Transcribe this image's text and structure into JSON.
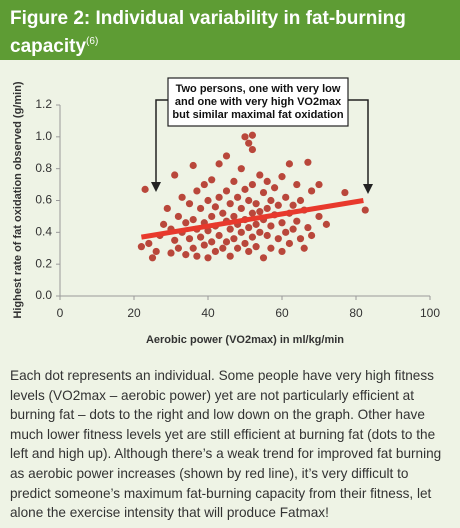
{
  "header": {
    "title": "Figure 2: Individual variability in fat-burning capacity",
    "reference": "(6)"
  },
  "chart_data": {
    "type": "scatter",
    "x_label": "Aerobic power (VO2max) in ml/kg/min",
    "y_label": "Highest rate of fat oxidation observed (g/min)",
    "annotation": [
      "Two persons, one with very low",
      "and one with very high VO2max",
      "but similar maximal fat oxidation"
    ],
    "xlim": [
      0,
      100
    ],
    "xticks": [
      0,
      20,
      40,
      60,
      80,
      100
    ],
    "ylim": [
      0,
      1.2
    ],
    "yticks": [
      {
        "value": 0,
        "label": "0.0"
      },
      0.2,
      0.4,
      0.6,
      0.8,
      {
        "value": 1,
        "label": "1.0"
      },
      1.2
    ],
    "color": "#b9473b",
    "x": [
      23,
      26,
      25,
      22,
      24,
      27,
      28,
      29,
      30,
      30,
      31,
      31,
      32,
      32,
      33,
      33,
      34,
      34,
      35,
      35,
      36,
      36,
      36,
      37,
      37,
      37,
      38,
      38,
      39,
      39,
      39,
      40,
      40,
      40,
      41,
      41,
      41,
      42,
      42,
      42,
      43,
      43,
      43,
      44,
      44,
      45,
      45,
      45,
      45,
      46,
      46,
      46,
      47,
      47,
      47,
      48,
      48,
      48,
      49,
      49,
      49,
      50,
      50,
      50,
      50,
      51,
      51,
      51,
      51,
      52,
      52,
      52,
      52,
      52,
      53,
      53,
      53,
      54,
      54,
      54,
      55,
      55,
      55,
      56,
      56,
      56,
      57,
      57,
      57,
      58,
      58,
      59,
      59,
      60,
      60,
      60,
      61,
      61,
      62,
      62,
      62,
      63,
      63,
      64,
      64,
      65,
      65,
      66,
      66,
      67,
      67,
      68,
      68,
      70,
      70,
      72,
      77,
      82.5
    ],
    "values": [
      0.67,
      0.28,
      0.24,
      0.31,
      0.33,
      0.38,
      0.45,
      0.55,
      0.42,
      0.27,
      0.76,
      0.35,
      0.5,
      0.3,
      0.62,
      0.4,
      0.46,
      0.26,
      0.58,
      0.36,
      0.82,
      0.48,
      0.3,
      0.66,
      0.42,
      0.25,
      0.55,
      0.37,
      0.7,
      0.46,
      0.32,
      0.6,
      0.41,
      0.24,
      0.73,
      0.5,
      0.34,
      0.56,
      0.44,
      0.28,
      0.83,
      0.62,
      0.38,
      0.52,
      0.3,
      0.88,
      0.66,
      0.47,
      0.34,
      0.58,
      0.42,
      0.25,
      0.72,
      0.5,
      0.36,
      0.62,
      0.45,
      0.3,
      0.8,
      0.55,
      0.4,
      1.0,
      0.67,
      0.48,
      0.33,
      0.96,
      0.6,
      0.43,
      0.28,
      1.01,
      0.92,
      0.7,
      0.52,
      0.37,
      0.58,
      0.45,
      0.31,
      0.76,
      0.53,
      0.4,
      0.65,
      0.48,
      0.24,
      0.72,
      0.55,
      0.38,
      0.6,
      0.44,
      0.3,
      0.68,
      0.51,
      0.57,
      0.36,
      0.75,
      0.46,
      0.28,
      0.62,
      0.4,
      0.83,
      0.52,
      0.33,
      0.57,
      0.42,
      0.7,
      0.47,
      0.6,
      0.36,
      0.54,
      0.3,
      0.84,
      0.43,
      0.66,
      0.38,
      0.7,
      0.5,
      0.45,
      0.65,
      0.54
    ],
    "trend_line": {
      "x": [
        22,
        82
      ],
      "values": [
        0.37,
        0.6
      ],
      "color": "#e8392c"
    }
  },
  "caption": "Each dot represents an individual. Some people have very high fitness levels (VO2max – aerobic power) yet are not particularly efficient at burning fat – dots to the right and low down on the graph. Other have much lower fitness levels yet are still efficient at burning fat (dots to the left and high up). Although there’s a weak trend for improved fat burning as aerobic power increases (shown by red line), it’s very difficult to predict someone’s maximum fat-burning capacity from their fitness, let alone the exercise intensity that will produce Fatmax!"
}
